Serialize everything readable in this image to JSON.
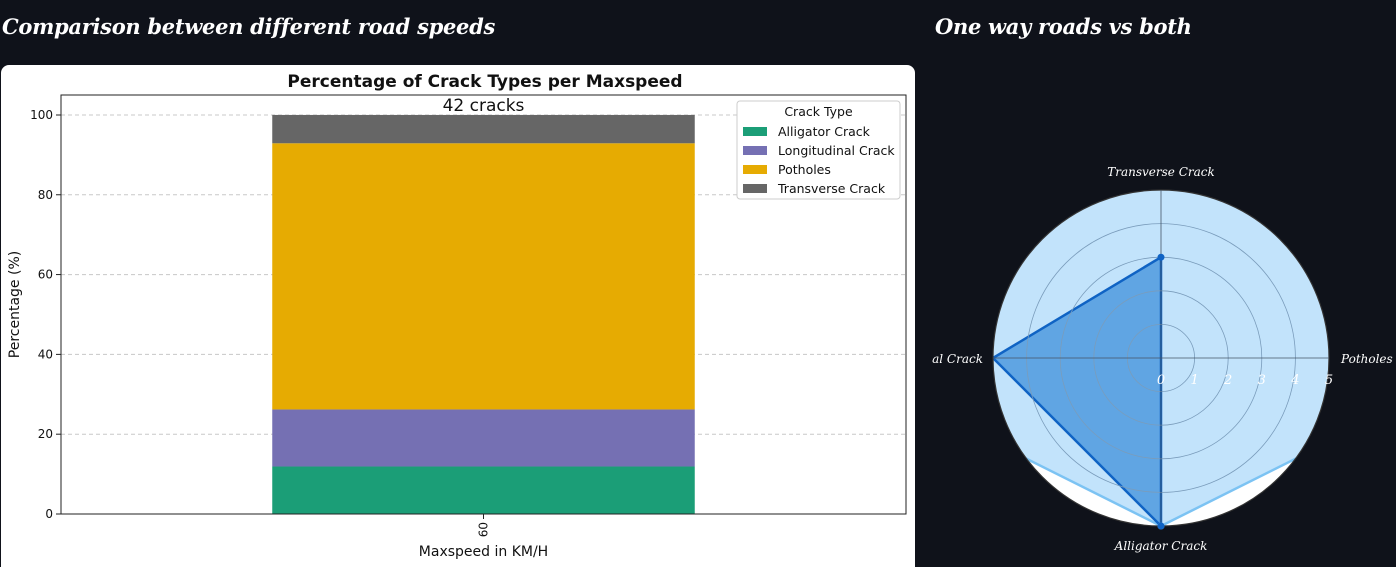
{
  "sections": {
    "left_title": "Comparison between different road speeds",
    "right_title": "One way roads vs both"
  },
  "colors": {
    "page_background": "#0f121a",
    "card_background": "#ffffff",
    "grid": "#c8c8c8",
    "radar_series_a_fill": "#bfe1fb",
    "radar_series_a_stroke": "#7cc3f3",
    "radar_series_b_fill": "#5ba1e2",
    "radar_series_b_stroke": "#0f63c4"
  },
  "chart_data": [
    {
      "type": "bar",
      "stacked": true,
      "title": "Percentage of Crack Types per Maxspeed",
      "annotation": "42 cracks",
      "xlabel": "Maxspeed in KM/H",
      "ylabel": "Percentage (%)",
      "categories": [
        "60"
      ],
      "ylim": [
        0,
        105
      ],
      "yticks": [
        0,
        20,
        40,
        60,
        80,
        100
      ],
      "grid": "y-dashed",
      "legend_position": "top-right",
      "legend_title": "Crack Type",
      "series": [
        {
          "name": "Alligator Crack",
          "color": "#1b9e77",
          "values": [
            11.9
          ]
        },
        {
          "name": "Longitudinal Crack",
          "color": "#7570b3",
          "values": [
            14.3
          ]
        },
        {
          "name": "Potholes",
          "color": "#e6ab02",
          "values": [
            66.7
          ]
        },
        {
          "name": "Transverse Crack",
          "color": "#666666",
          "values": [
            7.1
          ]
        }
      ]
    },
    {
      "type": "radar",
      "axes": [
        "Transverse Crack",
        "Potholes",
        "Alligator Crack",
        "Longitudinal Crack"
      ],
      "axis_display_labels": [
        "Transverse Crack",
        "Potholes",
        "Alligator Crack",
        "al Crack"
      ],
      "rlim": [
        0,
        5
      ],
      "rticks": [
        0,
        1,
        2,
        3,
        4,
        5
      ],
      "grid": true,
      "series": [
        {
          "values": [
            10,
            10,
            5,
            10
          ],
          "fill": "#bfe1fb",
          "stroke": "#7cc3f3",
          "show_points": [
            false,
            false,
            true,
            false
          ]
        },
        {
          "values": [
            3,
            0,
            5,
            5
          ],
          "fill": "#5ba1e2",
          "stroke": "#0f63c4",
          "show_points": [
            true,
            false,
            true,
            false
          ]
        }
      ]
    }
  ]
}
